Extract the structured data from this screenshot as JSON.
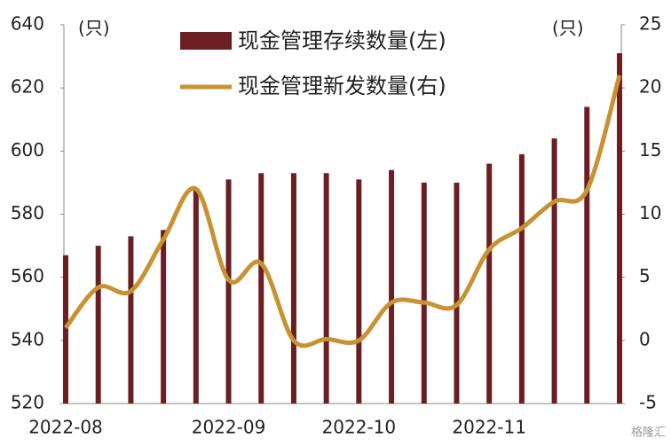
{
  "chart_data": {
    "type": "bar-line",
    "left_unit": "(只)",
    "right_unit": "(只)",
    "categories": [
      "2022-08",
      null,
      null,
      null,
      null,
      "2022-09",
      null,
      null,
      null,
      "2022-10",
      null,
      null,
      null,
      "2022-11",
      null,
      null,
      null,
      null
    ],
    "series": [
      {
        "name": "现金管理存续数量(左)",
        "type": "bar",
        "color": "#6b1f22",
        "values": [
          567,
          570,
          573,
          575,
          588,
          591,
          593,
          593,
          593,
          591,
          594,
          590,
          590,
          596,
          599,
          604,
          614,
          631
        ]
      },
      {
        "name": "现金管理新发数量(右)",
        "type": "line",
        "axis": "y2",
        "color": "#c89232",
        "values": [
          1,
          4.2,
          3.9,
          8,
          12,
          4.8,
          6.1,
          0,
          0.1,
          0,
          3,
          3,
          2.8,
          7.2,
          8.9,
          11,
          11.9,
          21
        ]
      }
    ],
    "ylim": [
      520,
      640
    ],
    "yticks": [
      520,
      540,
      560,
      580,
      600,
      620,
      640
    ],
    "y2lim": [
      -5,
      25
    ],
    "y2ticks": [
      -5,
      0,
      5,
      10,
      15,
      20,
      25
    ],
    "watermark": "格隆汇"
  }
}
